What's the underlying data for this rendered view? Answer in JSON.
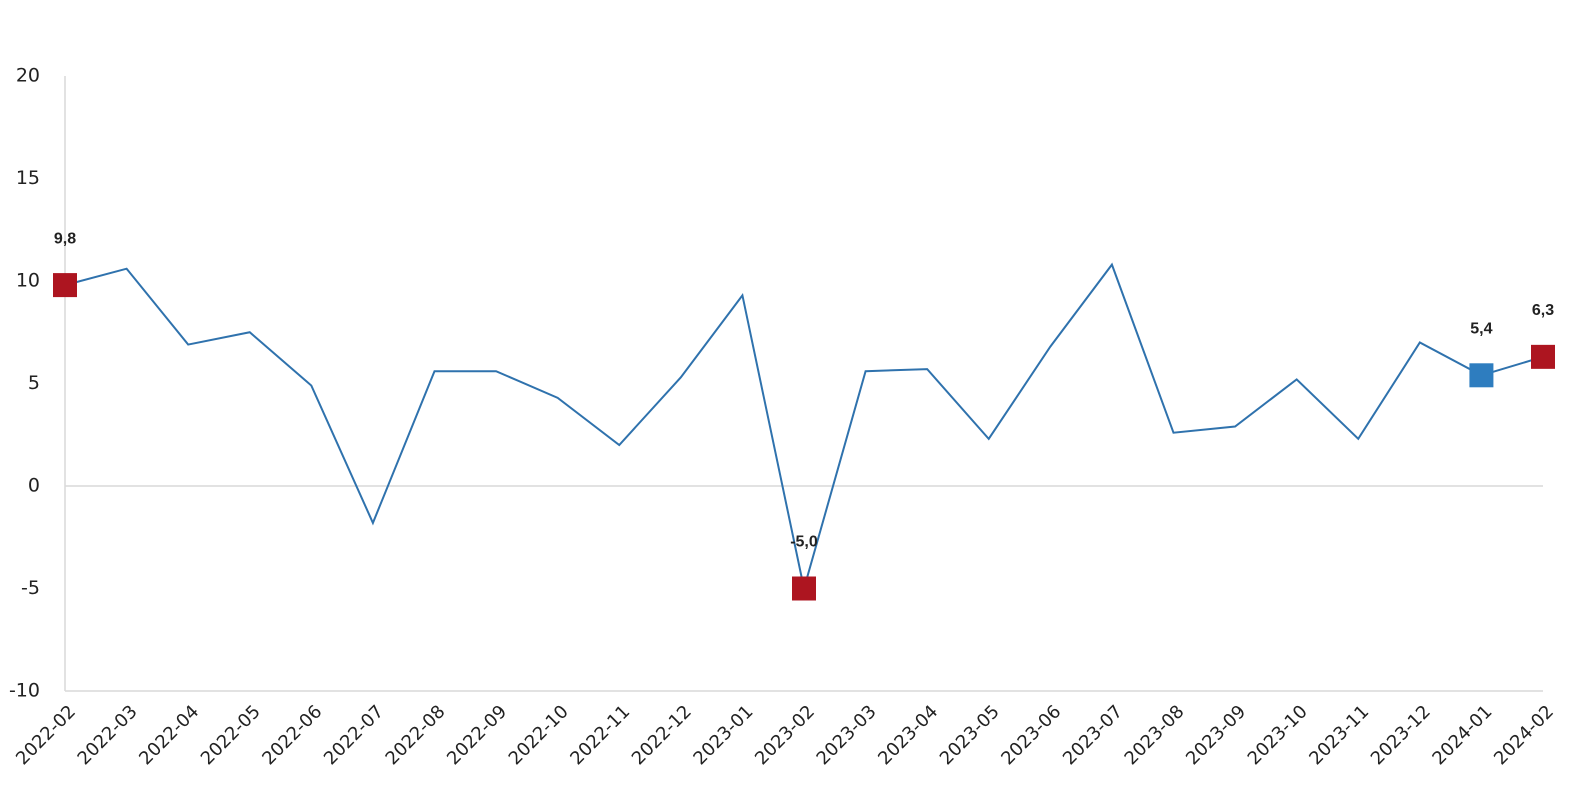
{
  "chart_data": {
    "type": "line",
    "x": [
      "2022-02",
      "2022-03",
      "2022-04",
      "2022-05",
      "2022-06",
      "2022-07",
      "2022-08",
      "2022-09",
      "2022-10",
      "2022-11",
      "2022-12",
      "2023-01",
      "2023-02",
      "2023-03",
      "2023-04",
      "2023-05",
      "2023-06",
      "2023-07",
      "2023-08",
      "2023-09",
      "2023-10",
      "2023-11",
      "2023-12",
      "2024-01",
      "2024-02"
    ],
    "series": [
      {
        "color": "#2f72ad",
        "values": [
          9.8,
          10.6,
          6.9,
          7.5,
          4.9,
          -1.8,
          5.6,
          5.6,
          4.3,
          2.0,
          5.3,
          9.3,
          -5.0,
          5.6,
          5.7,
          2.3,
          6.8,
          10.8,
          2.6,
          2.9,
          5.2,
          2.3,
          7.0,
          5.4,
          6.3
        ],
        "value_labels": [
          "9,8",
          null,
          null,
          null,
          null,
          null,
          null,
          null,
          null,
          null,
          null,
          null,
          "-5,0",
          null,
          null,
          null,
          null,
          null,
          null,
          null,
          null,
          null,
          null,
          "5,4",
          "6,3"
        ],
        "marker_colors": [
          "#ad1520",
          null,
          null,
          null,
          null,
          null,
          null,
          null,
          null,
          null,
          null,
          null,
          "#ad1520",
          null,
          null,
          null,
          null,
          null,
          null,
          null,
          null,
          null,
          null,
          "#2e7dbf",
          "#ad1520"
        ]
      }
    ],
    "ylim": [
      -10,
      20
    ],
    "yticks": [
      -10,
      -5,
      0,
      5,
      10,
      15,
      20
    ]
  }
}
